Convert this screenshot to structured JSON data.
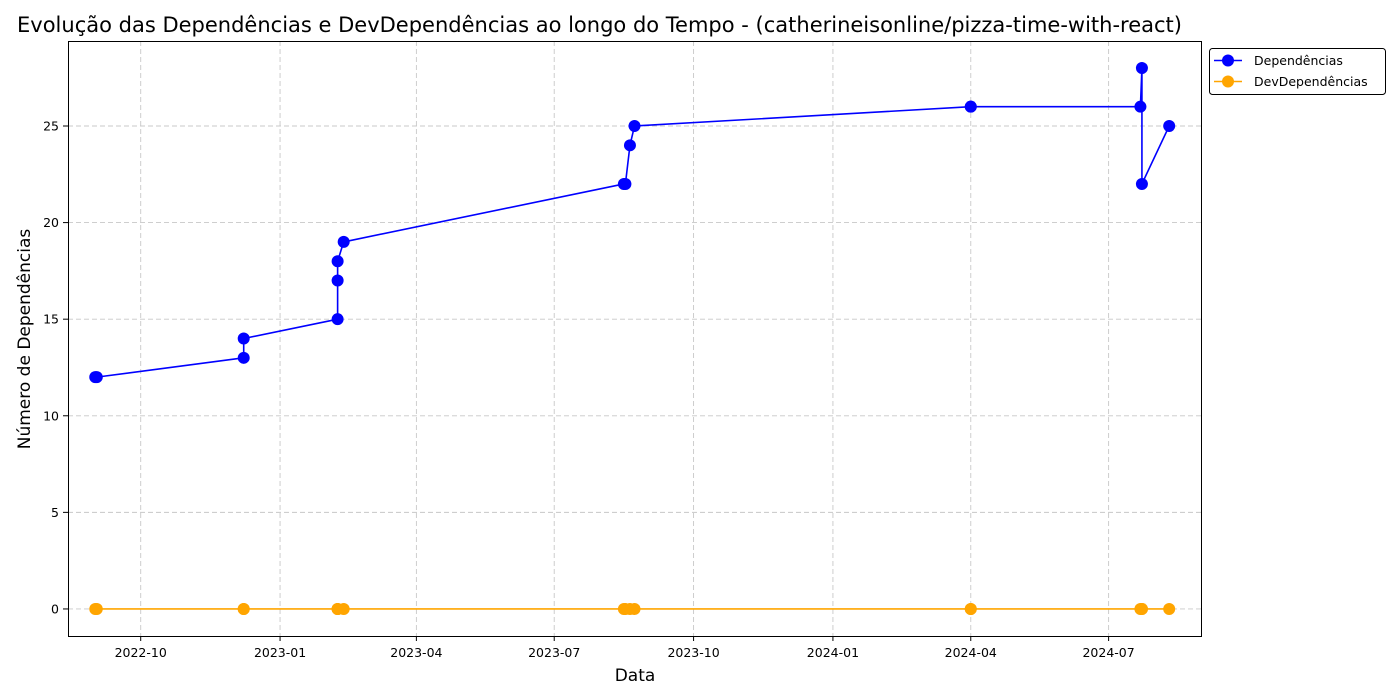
{
  "chart_data": {
    "type": "line",
    "title": "Evolução das Dependências e DevDependências ao longo do Tempo - (catherineisonline/pizza-time-with-react)",
    "xlabel": "Data",
    "ylabel": "Número de Dependências",
    "x_axis_type": "date",
    "xlim": [
      "2022-08-14",
      "2024-08-31"
    ],
    "ylim": [
      -1.4,
      29.4
    ],
    "x_ticks": [
      "2022-10-01",
      "2023-01-01",
      "2023-04-01",
      "2023-07-01",
      "2023-10-01",
      "2024-01-01",
      "2024-04-01",
      "2024-07-01"
    ],
    "x_tick_labels": [
      "2022-10",
      "2023-01",
      "2023-04",
      "2023-07",
      "2023-10",
      "2024-01",
      "2024-04",
      "2024-07"
    ],
    "y_ticks": [
      0,
      5,
      10,
      15,
      20,
      25
    ],
    "y_tick_labels": [
      "0",
      "5",
      "10",
      "15",
      "20",
      "25"
    ],
    "grid": true,
    "legend_position": "outside-top-right",
    "x": [
      "2022-09-01",
      "2022-09-02",
      "2022-12-08",
      "2022-12-08",
      "2023-02-08",
      "2023-02-08",
      "2023-02-08",
      "2023-02-12",
      "2023-08-16",
      "2023-08-17",
      "2023-08-20",
      "2023-08-23",
      "2024-04-01",
      "2024-04-01",
      "2024-07-22",
      "2024-07-23",
      "2024-07-23",
      "2024-08-10"
    ],
    "series": [
      {
        "name": "Dependências",
        "color": "#0000ff",
        "values": [
          12,
          12,
          13,
          14,
          15,
          17,
          18,
          19,
          22,
          22,
          24,
          25,
          26,
          26,
          26,
          28,
          22,
          25
        ]
      },
      {
        "name": "DevDependências",
        "color": "#ffa500",
        "values": [
          0,
          0,
          0,
          0,
          0,
          0,
          0,
          0,
          0,
          0,
          0,
          0,
          0,
          0,
          0,
          0,
          0,
          0
        ]
      }
    ]
  }
}
